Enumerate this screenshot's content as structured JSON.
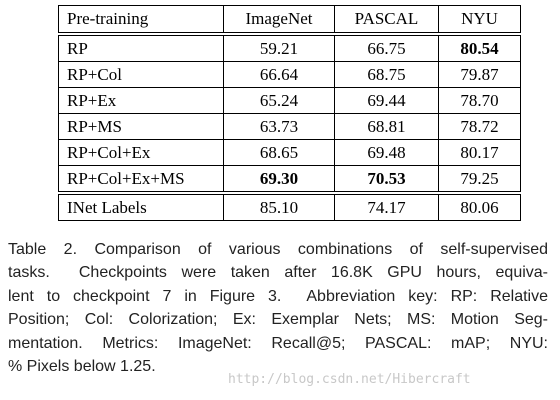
{
  "table": {
    "header": [
      "Pre-training",
      "ImageNet",
      "PASCAL",
      "NYU"
    ],
    "rows": [
      {
        "cells": [
          "RP",
          "59.21",
          "66.75",
          "80.54"
        ],
        "bold": [
          false,
          false,
          false,
          true
        ]
      },
      {
        "cells": [
          "RP+Col",
          "66.64",
          "68.75",
          "79.87"
        ],
        "bold": [
          false,
          false,
          false,
          false
        ]
      },
      {
        "cells": [
          "RP+Ex",
          "65.24",
          "69.44",
          "78.70"
        ],
        "bold": [
          false,
          false,
          false,
          false
        ]
      },
      {
        "cells": [
          "RP+MS",
          "63.73",
          "68.81",
          "78.72"
        ],
        "bold": [
          false,
          false,
          false,
          false
        ]
      },
      {
        "cells": [
          "RP+Col+Ex",
          "68.65",
          "69.48",
          "80.17"
        ],
        "bold": [
          false,
          false,
          false,
          false
        ]
      },
      {
        "cells": [
          "RP+Col+Ex+MS",
          "69.30",
          "70.53",
          "79.25"
        ],
        "bold": [
          false,
          true,
          true,
          false
        ]
      },
      {
        "cells": [
          "INet Labels",
          "85.10",
          "74.17",
          "80.06"
        ],
        "bold": [
          false,
          false,
          false,
          false
        ]
      }
    ]
  },
  "caption": {
    "lines": [
      "Table 2. Comparison of various combinations of self-supervised",
      "tasks.  Checkpoints were taken after 16.8K GPU hours, equiva-",
      "lent to checkpoint 7 in Figure 3.  Abbreviation key: RP: Relative",
      "Position; Col: Colorization; Ex: Exemplar Nets; MS: Motion Seg-",
      "mentation. Metrics: ImageNet: Recall@5; PASCAL: mAP; NYU:",
      "% Pixels below 1.25."
    ]
  },
  "watermark": "http://blog.csdn.net/Hibercraft"
}
